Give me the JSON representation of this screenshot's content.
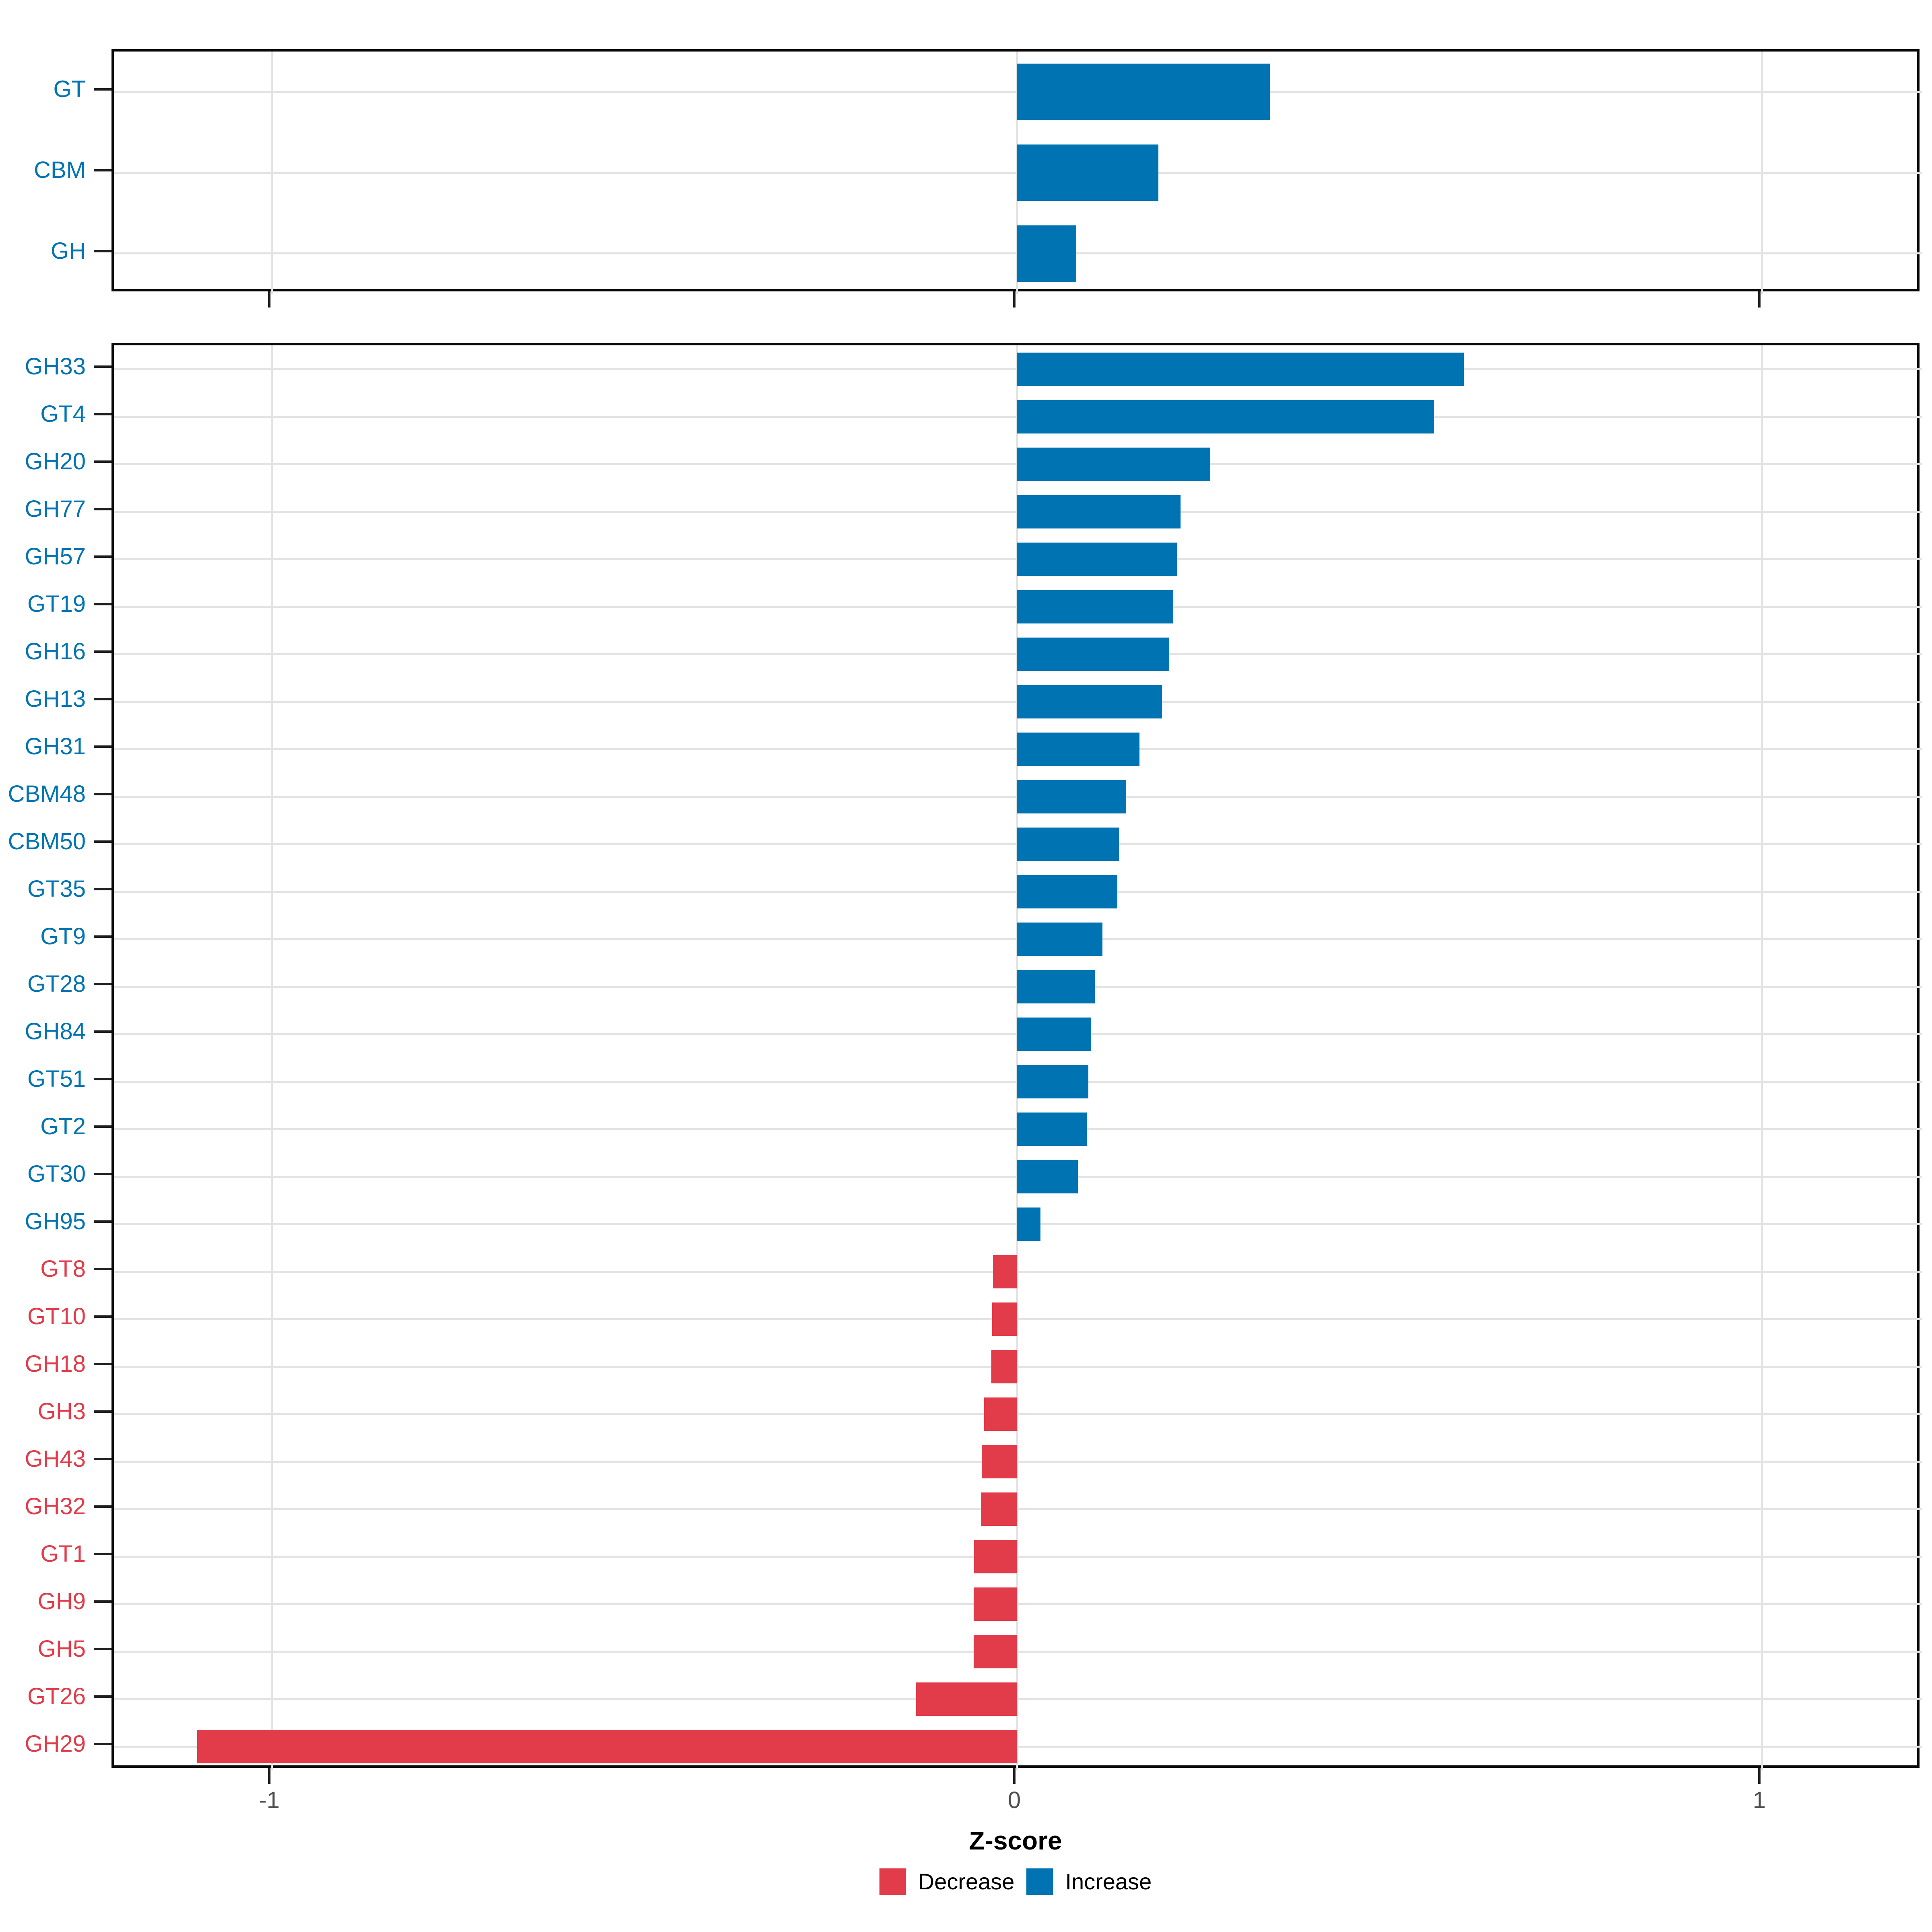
{
  "x_axis": {
    "title": "Z-score",
    "tick_labels": [
      "-1",
      "0",
      "1"
    ],
    "tick_values": [
      -1,
      0,
      1
    ],
    "range": [
      -1.21,
      1.22
    ]
  },
  "legend": {
    "items": [
      {
        "label": "Decrease",
        "color": "#e23b49"
      },
      {
        "label": "Increase",
        "color": "#0074b3"
      }
    ]
  },
  "colors": {
    "increase": "#0074b3",
    "decrease": "#e23b49",
    "gridline": "#e3e3e3",
    "panel_border": "#0a0a0a",
    "tick_mark": "#1f1f1f",
    "axis_tick_text": "#4d4d4d",
    "axis_title_text": "#000000"
  },
  "chart_data": [
    {
      "type": "bar",
      "panel": "cazyme-classes-top",
      "orientation": "horizontal",
      "categories": [
        "GT",
        "CBM",
        "GH"
      ],
      "values": [
        0.34,
        0.19,
        0.08
      ],
      "groups": [
        "Increase",
        "Increase",
        "Increase"
      ],
      "xlabel": "Z-score",
      "xlim": [
        -1.21,
        1.22
      ],
      "x_ticks": [
        -1,
        0,
        1
      ],
      "grid": true,
      "legend_position": "bottom"
    },
    {
      "type": "bar",
      "panel": "cazyme-families-bottom",
      "orientation": "horizontal",
      "categories": [
        "GH33",
        "GT4",
        "GH20",
        "GH77",
        "GH57",
        "GT19",
        "GH16",
        "GH13",
        "GH31",
        "CBM48",
        "CBM50",
        "GT35",
        "GT9",
        "GT28",
        "GH84",
        "GT51",
        "GT2",
        "GT30",
        "GH95",
        "GT8",
        "GT10",
        "GH18",
        "GH3",
        "GH43",
        "GH32",
        "GT1",
        "GH9",
        "GH5",
        "GT26",
        "GH29"
      ],
      "values": [
        0.6,
        0.56,
        0.26,
        0.22,
        0.215,
        0.21,
        0.205,
        0.195,
        0.165,
        0.147,
        0.137,
        0.135,
        0.115,
        0.105,
        0.1,
        0.096,
        0.094,
        0.082,
        0.032,
        -0.032,
        -0.033,
        -0.034,
        -0.044,
        -0.047,
        -0.048,
        -0.057,
        -0.058,
        -0.058,
        -0.135,
        -1.1
      ],
      "groups": [
        "Increase",
        "Increase",
        "Increase",
        "Increase",
        "Increase",
        "Increase",
        "Increase",
        "Increase",
        "Increase",
        "Increase",
        "Increase",
        "Increase",
        "Increase",
        "Increase",
        "Increase",
        "Increase",
        "Increase",
        "Increase",
        "Increase",
        "Decrease",
        "Decrease",
        "Decrease",
        "Decrease",
        "Decrease",
        "Decrease",
        "Decrease",
        "Decrease",
        "Decrease",
        "Decrease",
        "Decrease"
      ],
      "xlabel": "Z-score",
      "xlim": [
        -1.21,
        1.22
      ],
      "x_ticks": [
        -1,
        0,
        1
      ],
      "grid": true,
      "legend_position": "bottom"
    }
  ]
}
